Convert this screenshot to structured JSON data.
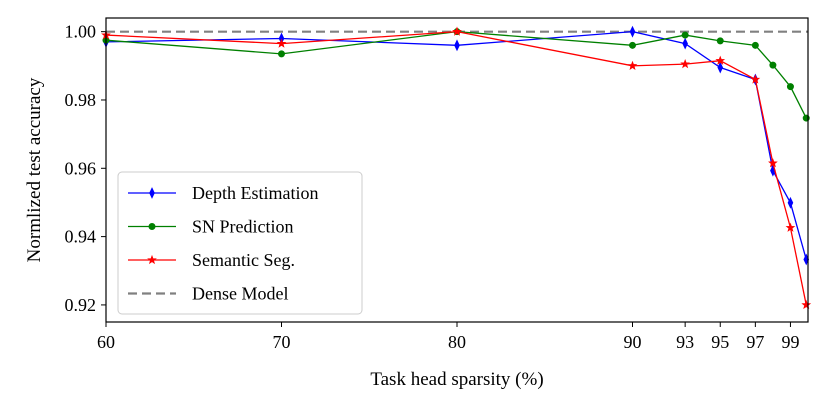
{
  "chart_data": {
    "type": "line",
    "title": "",
    "xlabel": "Task head sparsity (%)",
    "ylabel": "Normlized test accuracy",
    "xlim": [
      60,
      100
    ],
    "ylim": [
      0.915,
      1.004
    ],
    "x_ticks": [
      60,
      70,
      80,
      90,
      93,
      95,
      97,
      99
    ],
    "y_ticks": [
      0.92,
      0.94,
      0.96,
      0.98,
      1.0
    ],
    "y_tick_labels": [
      "0.92",
      "0.94",
      "0.96",
      "0.98",
      "1.00"
    ],
    "legend_position": "lower-left",
    "grid": false,
    "series": [
      {
        "name": "Depth Estimation",
        "color": "#0000ff",
        "marker": "thin-diamond",
        "x": [
          60,
          70,
          80,
          90,
          93,
          95,
          97,
          98,
          99,
          99.9
        ],
        "y": [
          0.997,
          0.998,
          0.996,
          1.0,
          0.9965,
          0.9895,
          0.986,
          0.9593,
          0.9499,
          0.9333
        ]
      },
      {
        "name": "SN Prediction",
        "color": "#008000",
        "marker": "circle",
        "x": [
          60,
          70,
          80,
          90,
          93,
          95,
          97,
          98,
          99,
          99.9
        ],
        "y": [
          0.9975,
          0.9935,
          1.0,
          0.996,
          0.999,
          0.9973,
          0.996,
          0.9902,
          0.9839,
          0.9747
        ]
      },
      {
        "name": "Semantic Seg.",
        "color": "#ff0000",
        "marker": "star",
        "x": [
          60,
          70,
          80,
          90,
          93,
          95,
          97,
          98,
          99,
          99.9
        ],
        "y": [
          0.999,
          0.9965,
          1.0,
          0.99,
          0.9905,
          0.9915,
          0.986,
          0.9615,
          0.9426,
          0.92
        ]
      }
    ],
    "reference_line": {
      "name": "Dense  Model",
      "y": 1.0,
      "color": "#808080",
      "style": "dashed"
    }
  }
}
